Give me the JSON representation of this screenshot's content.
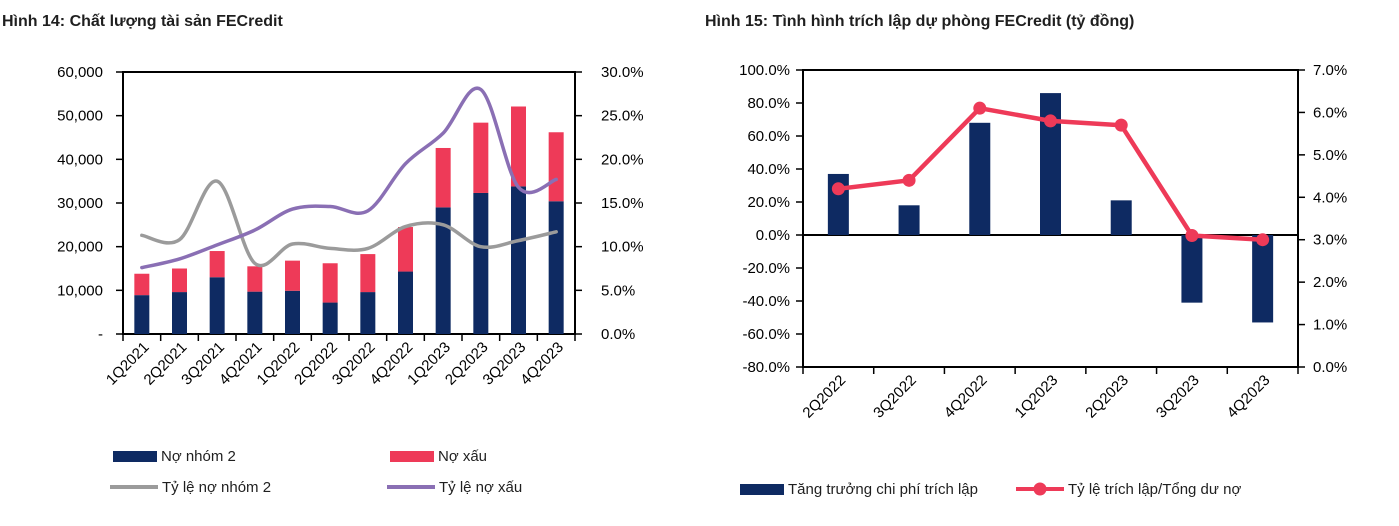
{
  "colors": {
    "navy": "#0e2a62",
    "red": "#ee3a58",
    "gray": "#9b9b9b",
    "purple": "#8a6fb4",
    "axis": "#000000",
    "title_text": "#1f1f1f",
    "background": "#ffffff"
  },
  "chart_data": [
    {
      "type": "combo",
      "title": "Hình 14: Chất lượng tài sản FECredit",
      "categories": [
        "1Q2021",
        "2Q2021",
        "3Q2021",
        "4Q2021",
        "1Q2022",
        "2Q2022",
        "3Q2022",
        "4Q2022",
        "1Q2023",
        "2Q2023",
        "3Q2023",
        "4Q2023"
      ],
      "axes": {
        "left": {
          "min": 0,
          "max": 60000,
          "tick_step": 10000,
          "tick_labels": [
            "-",
            "10,000",
            "20,000",
            "30,000",
            "40,000",
            "50,000",
            "60,000"
          ]
        },
        "right": {
          "min": 0,
          "max": 30,
          "tick_step": 5,
          "tick_labels": [
            "0.0%",
            "5.0%",
            "10.0%",
            "15.0%",
            "20.0%",
            "25.0%",
            "30.0%"
          ]
        }
      },
      "grid": false,
      "x_tick_rotation": -45,
      "legend_position": "bottom",
      "series": [
        {
          "name": "Nợ nhóm 2",
          "type": "bar",
          "stack": "debt",
          "axis": "left",
          "color": "#0e2a62",
          "values": [
            8900,
            9600,
            13000,
            9700,
            9900,
            7200,
            9600,
            14300,
            29000,
            32300,
            33800,
            30400
          ]
        },
        {
          "name": "Nợ xấu",
          "type": "bar",
          "stack": "debt",
          "axis": "left",
          "color": "#ee3a58",
          "values": [
            4900,
            5400,
            6000,
            5800,
            6900,
            9000,
            8700,
            10200,
            13600,
            16100,
            18300,
            15800
          ]
        },
        {
          "name": "Tỷ lệ nợ nhóm 2",
          "type": "line",
          "smooth": true,
          "marker": false,
          "axis": "right",
          "color": "#9b9b9b",
          "values": [
            11.3,
            10.8,
            17.5,
            8.1,
            10.3,
            9.8,
            9.8,
            12.3,
            12.5,
            10.0,
            10.7,
            11.7
          ]
        },
        {
          "name": "Tỷ lệ nợ xấu",
          "type": "line",
          "smooth": true,
          "marker": false,
          "axis": "right",
          "color": "#8a6fb4",
          "values": [
            7.6,
            8.6,
            10.2,
            11.9,
            14.3,
            14.6,
            14.1,
            19.5,
            23.0,
            28.0,
            16.8,
            17.7
          ]
        }
      ]
    },
    {
      "type": "combo",
      "title": "Hình 15: Tình hình trích lập dự phòng FECredit (tỷ đồng)",
      "categories": [
        "2Q2022",
        "3Q2022",
        "4Q2022",
        "1Q2023",
        "2Q2023",
        "3Q2023",
        "4Q2023"
      ],
      "axes": {
        "left": {
          "min": -80,
          "max": 100,
          "tick_step": 20,
          "tick_labels": [
            "-80.0%",
            "-60.0%",
            "-40.0%",
            "-20.0%",
            "0.0%",
            "20.0%",
            "40.0%",
            "60.0%",
            "80.0%",
            "100.0%"
          ]
        },
        "right": {
          "min": 0,
          "max": 7,
          "tick_step": 1,
          "tick_labels": [
            "0.0%",
            "1.0%",
            "2.0%",
            "3.0%",
            "4.0%",
            "5.0%",
            "6.0%",
            "7.0%"
          ]
        }
      },
      "grid": false,
      "zero_line": true,
      "x_tick_rotation": -45,
      "legend_position": "bottom",
      "series": [
        {
          "name": "Tăng trưởng chi phí trích lập",
          "type": "bar",
          "axis": "left",
          "color": "#0e2a62",
          "values": [
            37,
            18,
            68,
            86,
            21,
            -41,
            -53
          ]
        },
        {
          "name": "Tỷ lệ trích lập/Tổng dư nợ",
          "type": "line",
          "smooth": false,
          "marker": true,
          "axis": "right",
          "color": "#ee3a58",
          "values": [
            4.2,
            4.4,
            6.1,
            5.8,
            5.7,
            3.1,
            3.0
          ]
        }
      ]
    }
  ]
}
